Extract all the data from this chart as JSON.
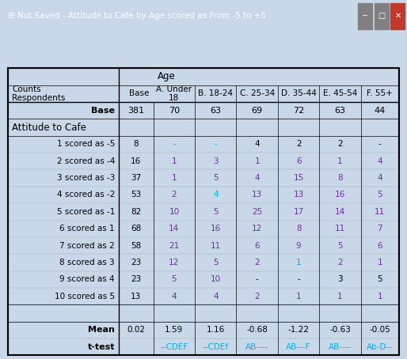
{
  "title_bar": "Not Saved - Attitude to Cafe by Age scored as From -5 to +5",
  "header_row1": [
    "",
    "",
    "Age",
    "",
    "",
    "",
    "",
    ""
  ],
  "header_row2": [
    "Counts\nRespondents",
    "Base",
    "A. Under\n18",
    "B. 18-24",
    "C. 25-34",
    "D. 35-44",
    "E. 45-54",
    "F. 55+"
  ],
  "col_widths": [
    1.6,
    0.5,
    0.6,
    0.6,
    0.6,
    0.6,
    0.6,
    0.55
  ],
  "base_row": [
    "Base",
    "381",
    "70",
    "63",
    "69",
    "72",
    "63",
    "44"
  ],
  "section_header": "Attitude to Cafe",
  "data_rows": [
    [
      "1 scored as -5",
      "8",
      "-",
      "-",
      "4",
      "2",
      "2",
      "-"
    ],
    [
      "2 scored as -4",
      "16",
      "1",
      "3",
      "1",
      "6",
      "1",
      "4"
    ],
    [
      "3 scored as -3",
      "37",
      "1",
      "5",
      "4",
      "15",
      "8",
      "4"
    ],
    [
      "4 scored as -2",
      "53",
      "2",
      "4",
      "13",
      "13",
      "16",
      "5"
    ],
    [
      "5 scored as -1",
      "82",
      "10",
      "5",
      "25",
      "17",
      "14",
      "11"
    ],
    [
      "6 scored as 1",
      "68",
      "14",
      "16",
      "12",
      "8",
      "11",
      "7"
    ],
    [
      "7 scored as 2",
      "58",
      "21",
      "11",
      "6",
      "9",
      "5",
      "6"
    ],
    [
      "8 scored as 3",
      "23",
      "12",
      "5",
      "2",
      "1",
      "2",
      "1"
    ],
    [
      "9 scored as 4",
      "23",
      "5",
      "10",
      "-",
      "-",
      "3",
      "5"
    ],
    [
      "10 scored as 5",
      "13",
      "4",
      "4",
      "2",
      "1",
      "1",
      "1"
    ]
  ],
  "mean_row": [
    "Mean",
    "0.02",
    "1.59",
    "1.16",
    "-0.68",
    "-1.22",
    "-0.63",
    "-0.05"
  ],
  "ttest_row": [
    "t-test",
    "",
    "--CDEF",
    "--CDEf",
    "AB----",
    "AB---F",
    "AB----",
    "Ab-D--"
  ],
  "colored_cells": {
    "data": [
      [
        0,
        2,
        "cyan"
      ],
      [
        0,
        3,
        "cyan"
      ],
      [
        1,
        2,
        "purple"
      ],
      [
        1,
        3,
        "purple"
      ],
      [
        1,
        4,
        "purple"
      ],
      [
        1,
        5,
        "purple"
      ],
      [
        1,
        6,
        "purple"
      ],
      [
        1,
        7,
        "purple"
      ],
      [
        2,
        2,
        "purple"
      ],
      [
        2,
        3,
        "purple"
      ],
      [
        2,
        4,
        "purple"
      ],
      [
        2,
        5,
        "purple"
      ],
      [
        2,
        6,
        "purple"
      ],
      [
        2,
        7,
        "purple"
      ],
      [
        3,
        2,
        "purple"
      ],
      [
        3,
        3,
        "cyan"
      ],
      [
        3,
        4,
        "purple"
      ],
      [
        3,
        5,
        "purple"
      ],
      [
        3,
        6,
        "purple"
      ],
      [
        3,
        7,
        "purple"
      ],
      [
        4,
        2,
        "purple"
      ],
      [
        4,
        3,
        "purple"
      ],
      [
        4,
        4,
        "purple"
      ],
      [
        4,
        5,
        "purple"
      ],
      [
        4,
        6,
        "purple"
      ],
      [
        4,
        7,
        "purple"
      ],
      [
        5,
        2,
        "purple"
      ],
      [
        5,
        3,
        "purple"
      ],
      [
        5,
        4,
        "purple"
      ],
      [
        5,
        5,
        "purple"
      ],
      [
        5,
        6,
        "purple"
      ],
      [
        5,
        7,
        "purple"
      ],
      [
        6,
        2,
        "purple"
      ],
      [
        6,
        3,
        "purple"
      ],
      [
        6,
        4,
        "purple"
      ],
      [
        6,
        5,
        "purple"
      ],
      [
        6,
        6,
        "purple"
      ],
      [
        6,
        7,
        "purple"
      ],
      [
        7,
        2,
        "purple"
      ],
      [
        7,
        3,
        "purple"
      ],
      [
        7,
        4,
        "purple"
      ],
      [
        7,
        5,
        "cyan"
      ],
      [
        7,
        6,
        "purple"
      ],
      [
        7,
        7,
        "purple"
      ],
      [
        8,
        2,
        "purple"
      ],
      [
        8,
        3,
        "purple"
      ],
      [
        9,
        2,
        "purple"
      ],
      [
        9,
        3,
        "purple"
      ],
      [
        9,
        4,
        "purple"
      ],
      [
        9,
        5,
        "purple"
      ],
      [
        9,
        6,
        "purple"
      ],
      [
        9,
        7,
        "purple"
      ]
    ]
  },
  "purple_color": "#7030A0",
  "cyan_color": "#00B0F0",
  "black_color": "#000000",
  "bg_color": "#FFFFFF",
  "header_bg": "#FFFFFF",
  "border_color": "#000000",
  "title_bg": "#2B4EA6",
  "title_fg": "#FFFFFF"
}
